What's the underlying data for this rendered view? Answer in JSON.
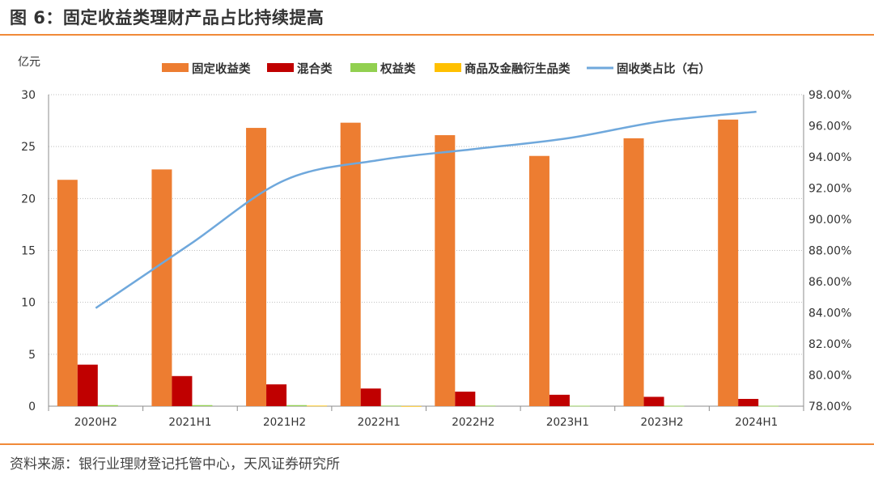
{
  "header": {
    "title": "图 6：固定收益类理财产品占比持续提高"
  },
  "footer": {
    "source": "资料来源：银行业理财登记托管中心，天风证券研究所"
  },
  "chart_data": {
    "type": "bar",
    "categories": [
      "2020H2",
      "2021H1",
      "2021H2",
      "2022H1",
      "2022H2",
      "2023H1",
      "2023H2",
      "2024H1"
    ],
    "y_left": {
      "label": "亿元",
      "ylim": [
        0,
        30
      ],
      "ticks": [
        0,
        5,
        10,
        15,
        20,
        25,
        30
      ]
    },
    "y_right": {
      "ylim": [
        78,
        98
      ],
      "ticks": [
        "78.00%",
        "80.00%",
        "82.00%",
        "84.00%",
        "86.00%",
        "88.00%",
        "90.00%",
        "92.00%",
        "94.00%",
        "96.00%",
        "98.00%"
      ]
    },
    "series": [
      {
        "name": "固定收益类",
        "type": "bar",
        "axis": "left",
        "color": "#ed7d31",
        "values": [
          21.8,
          22.8,
          26.8,
          27.3,
          26.1,
          24.1,
          25.8,
          27.6
        ]
      },
      {
        "name": "混合类",
        "type": "bar",
        "axis": "left",
        "color": "#c00000",
        "values": [
          4.0,
          2.9,
          2.1,
          1.7,
          1.4,
          1.1,
          0.9,
          0.7
        ]
      },
      {
        "name": "权益类",
        "type": "bar",
        "axis": "left",
        "color": "#92d050",
        "values": [
          0.1,
          0.1,
          0.1,
          0.05,
          0.05,
          0.04,
          0.03,
          0.03
        ]
      },
      {
        "name": "商品及金融衍生品类",
        "type": "bar",
        "axis": "left",
        "color": "#ffc000",
        "values": [
          0.0,
          0.0,
          0.05,
          0.01,
          0.0,
          0.0,
          0.0,
          0.0
        ]
      },
      {
        "name": "固收类占比（右）",
        "type": "line",
        "axis": "right",
        "color": "#6fa8dc",
        "values": [
          84.3,
          88.4,
          92.5,
          93.8,
          94.5,
          95.2,
          96.3,
          96.9
        ]
      }
    ],
    "legend_position": "top",
    "grid": true
  }
}
